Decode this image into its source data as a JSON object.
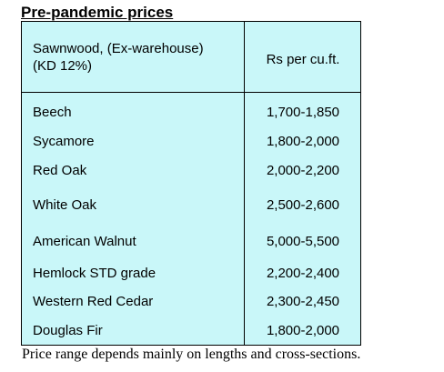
{
  "title": "Pre-pandemic prices",
  "table": {
    "header": {
      "name_line1": "Sawnwood, (Ex-warehouse)",
      "name_line2": "(KD 12%)",
      "price": "Rs per cu.ft."
    },
    "rows": [
      {
        "name": "Beech",
        "price": "1,700-1,850"
      },
      {
        "name": "Sycamore",
        "price": "1,800-2,000"
      },
      {
        "name": "Red Oak",
        "price": "2,000-2,200"
      },
      {
        "name": "White Oak",
        "price": "2,500-2,600"
      },
      {
        "name": "American Walnut",
        "price": "5,000-5,500"
      },
      {
        "name": "Hemlock STD grade",
        "price": "2,200-2,400"
      },
      {
        "name": "Western Red Cedar",
        "price": "2,300-2,450"
      },
      {
        "name": "Douglas Fir",
        "price": "1,800-2,000"
      }
    ],
    "background_color": "#c9f7f9"
  },
  "footnote": "Price range depends mainly on lengths and cross-sections."
}
